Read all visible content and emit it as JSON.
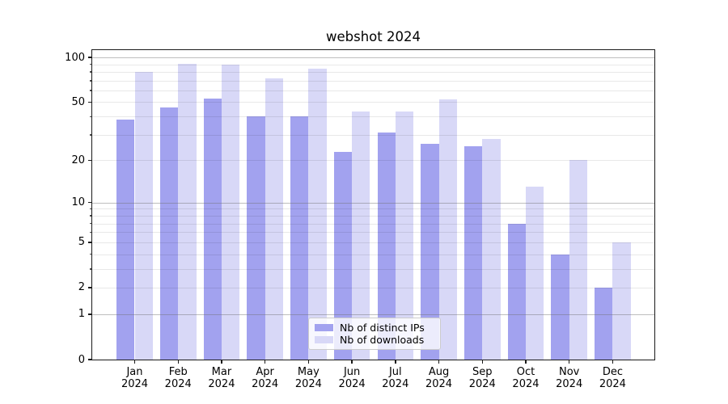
{
  "chart_data": {
    "type": "bar",
    "title": "webshot 2024",
    "categories": [
      "Jan",
      "Feb",
      "Mar",
      "Apr",
      "May",
      "Jun",
      "Jul",
      "Aug",
      "Sep",
      "Oct",
      "Nov",
      "Dec"
    ],
    "year_label": "2024",
    "series": [
      {
        "name": "Nb of distinct IPs",
        "color": "#a2a2ef",
        "values": [
          38,
          46,
          53,
          40,
          40,
          23,
          31,
          26,
          25,
          7,
          4,
          2
        ]
      },
      {
        "name": "Nb of downloads",
        "color": "#d8d8f7",
        "values": [
          80,
          91,
          89,
          72,
          84,
          43,
          43,
          52,
          28,
          13,
          20,
          5
        ]
      }
    ],
    "xlabel": "",
    "ylabel": "",
    "yscale": "log1p",
    "ylim": [
      0,
      112
    ],
    "yticks_labeled": [
      0,
      1,
      2,
      5,
      10,
      20,
      50,
      100
    ],
    "gridlines_major": [
      1,
      10,
      100
    ],
    "gridlines_minor": [
      2,
      3,
      4,
      5,
      6,
      7,
      8,
      9,
      20,
      30,
      40,
      50,
      60,
      70,
      80,
      90
    ],
    "grid": true,
    "legend_position": "lower center",
    "colors": {
      "grid_major": "#b0b0b0",
      "grid_minor": "#ebebeb",
      "spine": "#1a1a1a",
      "text": "#000000",
      "background": "#ffffff"
    }
  }
}
